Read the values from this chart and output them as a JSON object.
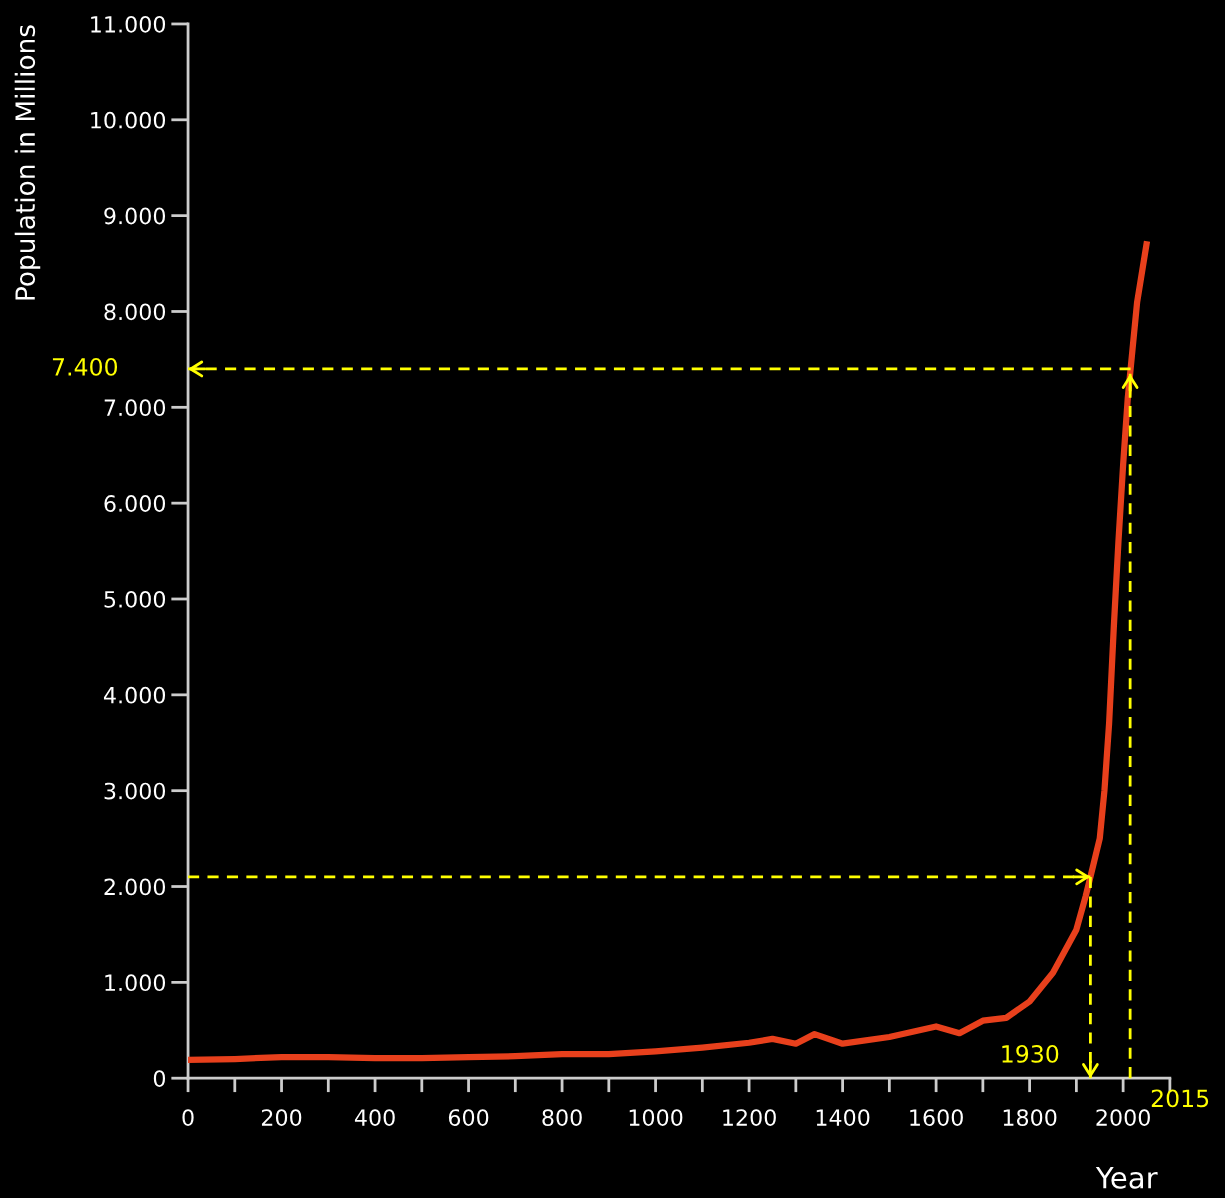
{
  "chart_data": {
    "type": "line",
    "xlabel": "Year",
    "ylabel": "Population in Millions",
    "x": [
      0,
      100,
      200,
      300,
      400,
      500,
      600,
      700,
      800,
      900,
      1000,
      1100,
      1200,
      1250,
      1300,
      1340,
      1400,
      1500,
      1600,
      1650,
      1700,
      1750,
      1800,
      1850,
      1900,
      1920,
      1930,
      1950,
      1960,
      1970,
      1980,
      1990,
      2000,
      2010,
      2020,
      2030,
      2050
    ],
    "series": [
      {
        "color": "#e8401c",
        "values": [
          190,
          200,
          220,
          220,
          210,
          210,
          220,
          230,
          250,
          250,
          280,
          320,
          370,
          410,
          360,
          460,
          360,
          430,
          540,
          470,
          600,
          630,
          800,
          1100,
          1550,
          1900,
          2100,
          2500,
          3000,
          3700,
          4700,
          5600,
          6400,
          7100,
          7600,
          8100,
          8700
        ]
      }
    ],
    "xlim": [
      0,
      2100
    ],
    "xticks": [
      0,
      {
        "value": 100,
        "label": null
      },
      200,
      {
        "value": 300,
        "label": null
      },
      400,
      {
        "value": 500,
        "label": null
      },
      600,
      {
        "value": 700,
        "label": null
      },
      800,
      {
        "value": 900,
        "label": null
      },
      1000,
      {
        "value": 1100,
        "label": null
      },
      1200,
      {
        "value": 1300,
        "label": null
      },
      1400,
      {
        "value": 1500,
        "label": null
      },
      1600,
      {
        "value": 1700,
        "label": null
      },
      1800,
      {
        "value": 1900,
        "label": null
      },
      2000,
      {
        "value": 2100,
        "label": null
      }
    ],
    "ylim": [
      0,
      11000
    ],
    "yticks": [
      0,
      {
        "value": 1000,
        "label": "1.000"
      },
      {
        "value": 2000,
        "label": "2.000"
      },
      {
        "value": 3000,
        "label": "3.000"
      },
      {
        "value": 4000,
        "label": "4.000"
      },
      {
        "value": 5000,
        "label": "5.000"
      },
      {
        "value": 6000,
        "label": "6.000"
      },
      {
        "value": 7000,
        "label": "7.000"
      },
      {
        "value": 8000,
        "label": "8.000"
      },
      {
        "value": 9000,
        "label": "9.000"
      },
      {
        "value": 10000,
        "label": "10.000"
      },
      {
        "value": 11000,
        "label": "11.000"
      }
    ],
    "grid": false,
    "legend": false,
    "marker": "none",
    "line_style": "solid",
    "ref_lines": [
      {
        "axis": "y",
        "value": 7400,
        "label": "7.400",
        "color": "#ffff00",
        "line_style": "dashed"
      },
      {
        "axis": "y",
        "value": 2100,
        "color": "#ffff00",
        "line_style": "dashed"
      },
      {
        "axis": "x",
        "value": 1930,
        "label": "1930",
        "color": "#ffff00",
        "line_style": "dashed"
      },
      {
        "axis": "x",
        "value": 2015,
        "label": "2015",
        "color": "#ffff00",
        "line_style": "dashed"
      }
    ]
  }
}
